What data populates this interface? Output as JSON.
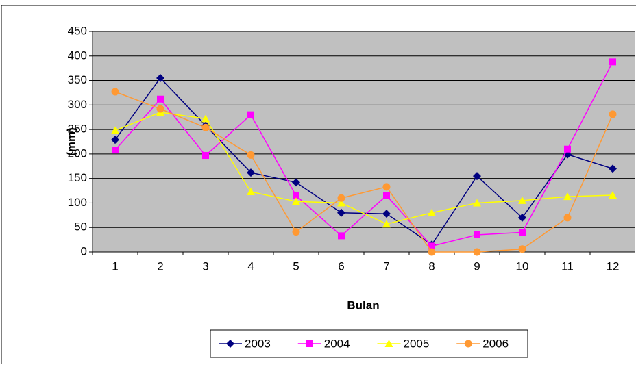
{
  "chart_data": {
    "type": "line",
    "y_label": "(mm)",
    "x_label": "Bulan",
    "categories": [
      "1",
      "2",
      "3",
      "4",
      "5",
      "6",
      "7",
      "8",
      "9",
      "10",
      "11",
      "12"
    ],
    "series": [
      {
        "name": "2003",
        "color": "#000080",
        "marker": "diamond",
        "values": [
          229,
          355,
          258,
          162,
          142,
          80,
          78,
          15,
          155,
          70,
          199,
          170
        ]
      },
      {
        "name": "2004",
        "color": "#ff00ff",
        "marker": "square",
        "values": [
          208,
          312,
          197,
          280,
          115,
          33,
          115,
          12,
          35,
          40,
          210,
          388
        ]
      },
      {
        "name": "2005",
        "color": "#ffff00",
        "marker": "triangle",
        "values": [
          248,
          285,
          272,
          123,
          103,
          100,
          57,
          80,
          100,
          105,
          113,
          116
        ]
      },
      {
        "name": "2006",
        "color": "#ff9933",
        "marker": "circle",
        "values": [
          327,
          292,
          254,
          198,
          41,
          110,
          133,
          0,
          0,
          6,
          70,
          281
        ]
      }
    ],
    "ylim": [
      0,
      450
    ],
    "yticks": [
      0,
      50,
      100,
      150,
      200,
      250,
      300,
      350,
      400,
      450
    ],
    "grid": true,
    "legend": "bottom"
  }
}
